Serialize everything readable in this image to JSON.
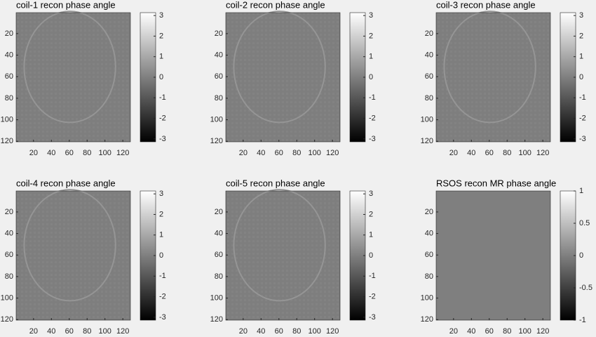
{
  "chart_data": [
    {
      "type": "image",
      "title": "coil-1 recon phase angle",
      "xlim": [
        0.5,
        128.5
      ],
      "xticks": [
        20,
        40,
        60,
        80,
        100,
        120
      ],
      "ylim": [
        0.5,
        120.5
      ],
      "yticks": [
        20,
        40,
        60,
        80,
        100,
        120
      ],
      "y_reversed": true,
      "colormap": "gray",
      "clim": [
        -3.1416,
        3.1416
      ],
      "cticks": [
        -3,
        -2,
        -1,
        0,
        1,
        2,
        3
      ]
    },
    {
      "type": "image",
      "title": "coil-2 recon phase angle",
      "xlim": [
        0.5,
        128.5
      ],
      "xticks": [
        20,
        40,
        60,
        80,
        100,
        120
      ],
      "ylim": [
        0.5,
        120.5
      ],
      "yticks": [
        20,
        40,
        60,
        80,
        100,
        120
      ],
      "y_reversed": true,
      "colormap": "gray",
      "clim": [
        -3.1416,
        3.1416
      ],
      "cticks": [
        -3,
        -2,
        -1,
        0,
        1,
        2,
        3
      ]
    },
    {
      "type": "image",
      "title": "coil-3 recon phase angle",
      "xlim": [
        0.5,
        128.5
      ],
      "xticks": [
        20,
        40,
        60,
        80,
        100,
        120
      ],
      "ylim": [
        0.5,
        120.5
      ],
      "yticks": [
        20,
        40,
        60,
        80,
        100,
        120
      ],
      "y_reversed": true,
      "colormap": "gray",
      "clim": [
        -3.1416,
        3.1416
      ],
      "cticks": [
        -3,
        -2,
        -1,
        0,
        1,
        2,
        3
      ]
    },
    {
      "type": "image",
      "title": "coil-4 recon phase angle",
      "xlim": [
        0.5,
        128.5
      ],
      "xticks": [
        20,
        40,
        60,
        80,
        100,
        120
      ],
      "ylim": [
        0.5,
        120.5
      ],
      "yticks": [
        20,
        40,
        60,
        80,
        100,
        120
      ],
      "y_reversed": true,
      "colormap": "gray",
      "clim": [
        -3.1416,
        3.1416
      ],
      "cticks": [
        -3,
        -2,
        -1,
        0,
        1,
        2,
        3
      ]
    },
    {
      "type": "image",
      "title": "coil-5 recon phase angle",
      "xlim": [
        0.5,
        128.5
      ],
      "xticks": [
        20,
        40,
        60,
        80,
        100,
        120
      ],
      "ylim": [
        0.5,
        120.5
      ],
      "yticks": [
        20,
        40,
        60,
        80,
        100,
        120
      ],
      "y_reversed": true,
      "colormap": "gray",
      "clim": [
        -3.1416,
        3.1416
      ],
      "cticks": [
        -3,
        -2,
        -1,
        0,
        1,
        2,
        3
      ]
    },
    {
      "type": "image",
      "title": "RSOS recon MR phase angle",
      "xlim": [
        0.5,
        128.5
      ],
      "xticks": [
        20,
        40,
        60,
        80,
        100,
        120
      ],
      "ylim": [
        0.5,
        120.5
      ],
      "yticks": [
        20,
        40,
        60,
        80,
        100,
        120
      ],
      "y_reversed": true,
      "colormap": "gray",
      "clim": [
        -1,
        1
      ],
      "cticks": [
        -1,
        -0.5,
        0,
        0.5,
        1
      ]
    }
  ]
}
